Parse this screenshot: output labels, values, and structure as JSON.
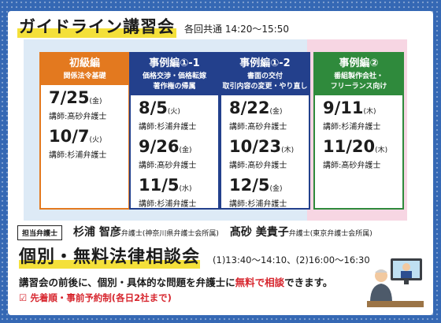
{
  "guideline": {
    "title": "ガイドライン講習会",
    "time": "各回共通 14:20〜15:50",
    "cards": [
      {
        "name": "初級編",
        "sub": "関係法令基礎",
        "color": "#e3791f",
        "entries": [
          {
            "date": "7/25",
            "weekday": "(金)",
            "lecturer": "講師:髙砂弁護士"
          },
          {
            "date": "10/7",
            "weekday": "(火)",
            "lecturer": "講師:杉浦弁護士"
          }
        ]
      },
      {
        "name": "事例編①-1",
        "sub": "価格交渉・価格転嫁\n著作権の帰属",
        "color": "#23408c",
        "entries": [
          {
            "date": "8/5",
            "weekday": "(火)",
            "lecturer": "講師:杉浦弁護士"
          },
          {
            "date": "9/26",
            "weekday": "(金)",
            "lecturer": "講師:髙砂弁護士"
          },
          {
            "date": "11/5",
            "weekday": "(水)",
            "lecturer": "講師:杉浦弁護士"
          }
        ]
      },
      {
        "name": "事例編①-2",
        "sub": "書面の交付\n取引内容の変更・やり直し",
        "color": "#23408c",
        "entries": [
          {
            "date": "8/22",
            "weekday": "(金)",
            "lecturer": "講師:髙砂弁護士"
          },
          {
            "date": "10/23",
            "weekday": "(木)",
            "lecturer": "講師:髙砂弁護士"
          },
          {
            "date": "12/5",
            "weekday": "(金)",
            "lecturer": "講師:杉浦弁護士"
          }
        ]
      },
      {
        "name": "事例編②",
        "sub": "番組製作会社・\nフリーランス向け",
        "color": "#2f8a3c",
        "entries": [
          {
            "date": "9/11",
            "weekday": "(木)",
            "lecturer": "講師:杉浦弁護士"
          },
          {
            "date": "11/20",
            "weekday": "(木)",
            "lecturer": "講師:髙砂弁護士"
          }
        ]
      }
    ]
  },
  "instructors": {
    "badge": "担当弁護士",
    "list": [
      {
        "name": "杉浦 智彦",
        "role": "弁護士(神奈川県弁護士会所属)"
      },
      {
        "name": "髙砂 美貴子",
        "role": "弁護士(東京弁護士会所属)"
      }
    ]
  },
  "consultation": {
    "title": "個別・無料法律相談会",
    "times": "(1)13:40〜14:10、(2)16:00〜16:30",
    "desc_before": "講習会の前後に、個別・具体的な問題を弁護士に",
    "desc_highlight": "無料で相談",
    "desc_after": "できます。",
    "note": "☑ 先着順・事前予約制(各日2社まで)"
  }
}
